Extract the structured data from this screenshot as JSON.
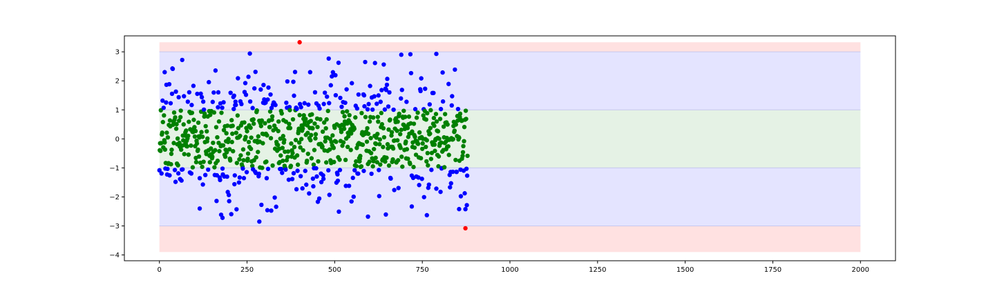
{
  "chart_data": {
    "type": "scatter",
    "title": "",
    "xlabel": "",
    "ylabel": "",
    "xlim": [
      -100,
      2100
    ],
    "ylim": [
      -4.2,
      3.55
    ],
    "xticks": [
      0,
      250,
      500,
      750,
      1000,
      1250,
      1500,
      1750,
      2000
    ],
    "xtick_labels": [
      "0",
      "250",
      "500",
      "750",
      "1000",
      "1250",
      "1500",
      "1750",
      "2000"
    ],
    "yticks": [
      -4,
      -3,
      -2,
      -1,
      0,
      1,
      2,
      3
    ],
    "ytick_labels": [
      "−4",
      "−3",
      "−2",
      "−1",
      "0",
      "1",
      "2",
      "3"
    ],
    "grid": false,
    "legend": "none",
    "bands": [
      {
        "y0": 3,
        "y1": 3.33,
        "x0": 0,
        "x1": 2000,
        "color": "#ffe1e1"
      },
      {
        "y0": -3.9,
        "y1": -3,
        "x0": 0,
        "x1": 2000,
        "color": "#ffe1e1"
      },
      {
        "y0": 1,
        "y1": 3,
        "x0": 0,
        "x1": 2000,
        "color": "#e4e4ff"
      },
      {
        "y0": -3,
        "y1": -1,
        "x0": 0,
        "x1": 2000,
        "color": "#e4e4ff"
      },
      {
        "y0": -1,
        "y1": 1,
        "x0": 0,
        "x1": 2000,
        "color": "#e5f2e5"
      }
    ],
    "band_edges": {
      "values": [
        1,
        -1,
        3,
        -3
      ],
      "color": "#c5c8ee"
    },
    "x_count": 880,
    "color_thresholds": {
      "inner": 1,
      "outer": 3
    },
    "colors": {
      "inner": "#008000",
      "middle": "#0000ff",
      "outer": "#ff0000"
    },
    "outliers": [
      {
        "x": 400,
        "y": 3.33
      },
      {
        "x": 873,
        "y": -3.08
      }
    ],
    "highlight_points": [
      {
        "x": 690,
        "y": 2.9
      },
      {
        "x": 790,
        "y": 2.93
      },
      {
        "x": 65,
        "y": 2.72
      },
      {
        "x": 285,
        "y": -2.85
      },
      {
        "x": 595,
        "y": -2.68
      },
      {
        "x": 180,
        "y": -2.72
      },
      {
        "x": 763,
        "y": -2.63
      },
      {
        "x": 15,
        "y": 2.3
      },
      {
        "x": 430,
        "y": 2.3
      },
      {
        "x": 855,
        "y": -2.42
      },
      {
        "x": 720,
        "y": -2.33
      },
      {
        "x": 115,
        "y": -2.4
      }
    ]
  }
}
